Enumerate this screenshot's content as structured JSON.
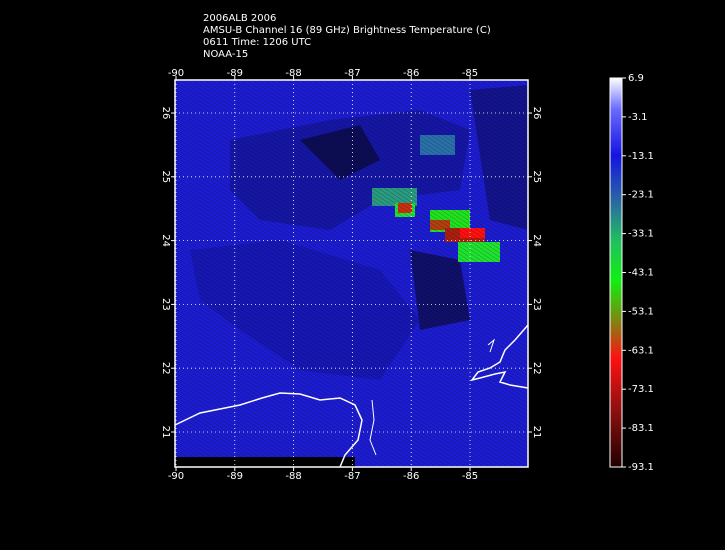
{
  "header": {
    "lines": [
      "2006ALB 2006",
      "AMSU-B Channel 16 (89 GHz) Brightness Temperature (C)",
      "0611 Time: 1206 UTC",
      "NOAA-15"
    ]
  },
  "map": {
    "lon_ticks": [
      -90,
      -89,
      -88,
      -87,
      -86,
      -85
    ],
    "lat_ticks": [
      26,
      25,
      24,
      23,
      22,
      21
    ]
  },
  "colorbar": {
    "ticks": [
      6.9,
      -3.1,
      -13.1,
      -23.1,
      -33.1,
      -43.1,
      -53.1,
      -63.1,
      -73.1,
      -83.1,
      -93.1
    ]
  }
}
